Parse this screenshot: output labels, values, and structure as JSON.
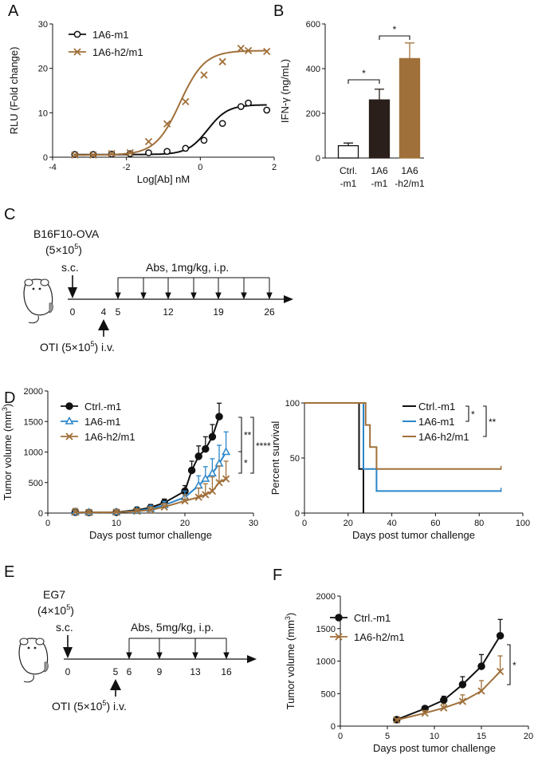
{
  "colors": {
    "black": "#111111",
    "brown": "#a0703a",
    "blue": "#2a86c9",
    "darkbar": "#2a1f1b"
  },
  "panels": {
    "A": {
      "letter": "A"
    },
    "B": {
      "letter": "B"
    },
    "C": {
      "letter": "C"
    },
    "D": {
      "letter": "D"
    },
    "E": {
      "letter": "E"
    },
    "F": {
      "letter": "F"
    }
  },
  "schemeC": {
    "model": "B16F10-OVA",
    "dose_base": "(5×10",
    "dose_exp": "5",
    "dose_close": ")",
    "route": "s.c.",
    "abs_label": "Abs, 1mg/kg, i.p.",
    "ticks": [
      "0",
      "4",
      "5",
      "12",
      "19",
      "26"
    ],
    "oti_base": "OTI (5×10",
    "oti_exp": "5",
    "oti_tail": ")  i.v."
  },
  "schemeE": {
    "model": "EG7",
    "dose_base": "(4×10",
    "dose_exp": "5",
    "dose_close": ")",
    "route": "s.c.",
    "abs_label": "Abs, 5mg/kg, i.p.",
    "ticks": [
      "0",
      "5",
      "6",
      "9",
      "13",
      "16"
    ],
    "oti_base": "OTI (5×10",
    "oti_exp": "5",
    "oti_tail": ")  i.v."
  },
  "chart_data": [
    {
      "id": "A",
      "type": "scatter-with-fit",
      "xlabel": "Log[Ab] nM",
      "ylabel": "RLU (Fold change)",
      "xlim": [
        -4,
        2
      ],
      "ylim": [
        0,
        30
      ],
      "xticks": [
        "-4",
        "-2",
        "0",
        "2"
      ],
      "yticks": [
        "0",
        "10",
        "20",
        "30"
      ],
      "legend_position": "top-left",
      "series": [
        {
          "name": "1A6-m1",
          "marker": "circle",
          "color": "#111111",
          "x": [
            -3.4,
            -2.9,
            -2.4,
            -1.9,
            -1.4,
            -0.9,
            -0.4,
            0.1,
            0.6,
            1.1,
            1.3,
            1.8
          ],
          "y": [
            0.6,
            0.6,
            0.7,
            0.8,
            1.0,
            1.3,
            2.0,
            3.8,
            7.6,
            11.4,
            12.2,
            10.6
          ],
          "fit": {
            "bottom": 0.6,
            "top": 11.8,
            "logEC50": 0.2,
            "hill": 1.6
          }
        },
        {
          "name": "1A6-h2/m1",
          "marker": "x",
          "color": "#a0703a",
          "x": [
            -3.4,
            -2.9,
            -2.4,
            -1.9,
            -1.4,
            -0.9,
            -0.4,
            0.1,
            0.6,
            1.1,
            1.3,
            1.8
          ],
          "y": [
            0.5,
            0.5,
            0.8,
            1.0,
            3.5,
            7.5,
            12.5,
            18.5,
            21.5,
            24.5,
            24.0,
            23.8
          ],
          "fit": {
            "bottom": 0.5,
            "top": 24.0,
            "logEC50": -0.55,
            "hill": 1.3
          }
        }
      ]
    },
    {
      "id": "B",
      "type": "bar",
      "ylabel": "IFN-γ (ng/mL)",
      "ylim": [
        0,
        600
      ],
      "yticks": [
        "0",
        "200",
        "400",
        "600"
      ],
      "categories": [
        [
          "Ctrl.",
          "-m1"
        ],
        [
          "1A6",
          "-m1"
        ],
        [
          "1A6",
          "-h2/m1"
        ]
      ],
      "values": [
        55,
        260,
        445
      ],
      "errors": [
        12,
        48,
        70
      ],
      "fills": [
        "#ffffff",
        "#2a1f1b",
        "#a0703a"
      ],
      "significance": [
        {
          "from": 0,
          "to": 1,
          "label": "*"
        },
        {
          "from": 1,
          "to": 2,
          "label": "*"
        }
      ]
    },
    {
      "id": "D1",
      "type": "line",
      "xlabel": "Days post tumor challenge",
      "ylabel": "Tumor volume (mm",
      "ylabel_sup": "3",
      "ylabel_close": ")",
      "xlim": [
        0,
        30
      ],
      "ylim": [
        0,
        2000
      ],
      "xticks": [
        "0",
        "10",
        "20",
        "30"
      ],
      "yticks": [
        "0",
        "500",
        "1000",
        "1500",
        "2000"
      ],
      "legend_position": "top-left",
      "series": [
        {
          "name": "Ctrl.-m1",
          "marker": "circle",
          "color": "#111111",
          "x": [
            4,
            6,
            10,
            13,
            15,
            17,
            20,
            21,
            22,
            23,
            24,
            25
          ],
          "y": [
            15,
            10,
            15,
            50,
            90,
            170,
            360,
            700,
            930,
            1050,
            1250,
            1580
          ],
          "err": [
            60,
            40,
            40,
            40,
            50,
            60,
            90,
            150,
            170,
            200,
            200,
            220
          ]
        },
        {
          "name": "1A6-m1",
          "marker": "triangle",
          "color": "#2a86c9",
          "x": [
            4,
            6,
            10,
            13,
            15,
            17,
            20,
            22,
            23,
            24,
            25,
            26
          ],
          "y": [
            15,
            10,
            15,
            35,
            70,
            130,
            260,
            450,
            560,
            650,
            810,
            1000
          ],
          "err": [
            60,
            40,
            40,
            40,
            50,
            60,
            100,
            160,
            200,
            240,
            300,
            330
          ]
        },
        {
          "name": "1A6-h2/m1",
          "marker": "x",
          "color": "#a0703a",
          "x": [
            4,
            6,
            10,
            13,
            15,
            17,
            20,
            22,
            23,
            24,
            25,
            26
          ],
          "y": [
            15,
            10,
            15,
            30,
            50,
            100,
            200,
            260,
            300,
            360,
            500,
            560
          ],
          "err": [
            60,
            40,
            40,
            40,
            50,
            60,
            100,
            150,
            180,
            230,
            270,
            290
          ]
        }
      ],
      "significance": [
        {
          "label": "**"
        },
        {
          "label": "*"
        },
        {
          "label": "****"
        }
      ]
    },
    {
      "id": "D2",
      "type": "survival",
      "xlabel": "Days post tumor challenge",
      "ylabel": "Percent survival",
      "xlim": [
        0,
        100
      ],
      "ylim": [
        0,
        100
      ],
      "xticks": [
        "0",
        "20",
        "40",
        "60",
        "80",
        "100"
      ],
      "yticks": [
        "0",
        "50",
        "100"
      ],
      "legend_position": "top-right",
      "series": [
        {
          "name": "Ctrl.-m1",
          "color": "#111111",
          "steps": [
            [
              0,
              100
            ],
            [
              25,
              100
            ],
            [
              25,
              40
            ],
            [
              27,
              40
            ],
            [
              27,
              0
            ]
          ],
          "end": 27
        },
        {
          "name": "1A6-m1",
          "color": "#2a86c9",
          "steps": [
            [
              0,
              100
            ],
            [
              27,
              100
            ],
            [
              27,
              40
            ],
            [
              33,
              40
            ],
            [
              33,
              20
            ],
            [
              90,
              20
            ]
          ],
          "end": 90
        },
        {
          "name": "1A6-h2/m1",
          "color": "#a0703a",
          "steps": [
            [
              0,
              100
            ],
            [
              28,
              100
            ],
            [
              28,
              80
            ],
            [
              30,
              80
            ],
            [
              30,
              60
            ],
            [
              33,
              60
            ],
            [
              33,
              40
            ],
            [
              90,
              40
            ]
          ],
          "end": 90
        }
      ],
      "significance": [
        {
          "label": "*"
        },
        {
          "label": "**"
        }
      ]
    },
    {
      "id": "F",
      "type": "line",
      "xlabel": "Days post tumor challenge",
      "ylabel": "Tumor volume (mm",
      "ylabel_sup": "3",
      "ylabel_close": ")",
      "xlim": [
        0,
        20
      ],
      "ylim": [
        0,
        2000
      ],
      "xticks": [
        "0",
        "5",
        "10",
        "15",
        "20"
      ],
      "yticks": [
        "0",
        "500",
        "1000",
        "1500",
        "2000"
      ],
      "legend_position": "top-left",
      "series": [
        {
          "name": "Ctrl.-m1",
          "marker": "circle",
          "color": "#111111",
          "x": [
            6,
            9,
            11,
            13,
            15,
            17
          ],
          "y": [
            100,
            270,
            400,
            640,
            920,
            1390
          ],
          "err": [
            20,
            40,
            60,
            120,
            180,
            250
          ]
        },
        {
          "name": "1A6-h2/m1",
          "marker": "x",
          "color": "#a0703a",
          "x": [
            6,
            9,
            11,
            13,
            15,
            17
          ],
          "y": [
            95,
            200,
            280,
            380,
            540,
            840
          ],
          "err": [
            20,
            40,
            60,
            100,
            160,
            240
          ]
        }
      ],
      "significance": [
        {
          "label": "*"
        }
      ]
    }
  ]
}
